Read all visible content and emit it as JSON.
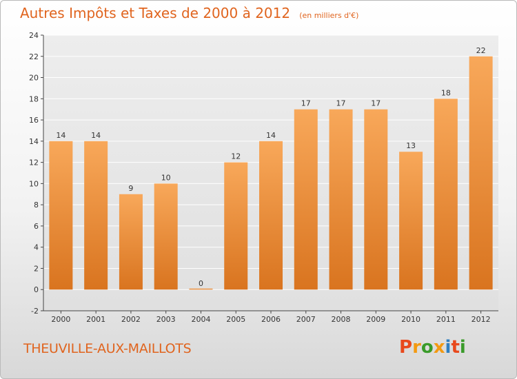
{
  "title": "Autres Impôts et Taxes de 2000 à 2012",
  "unit": "(en milliers d'€)",
  "location": "THEUVILLE-AUX-MAILLOTS",
  "logo": {
    "text": "Proxiti",
    "colors": [
      "#e8491d",
      "#f39a12",
      "#3a9b2a",
      "#f39a12",
      "#2f7fc1",
      "#e8491d",
      "#3a9b2a"
    ]
  },
  "chart_data": {
    "type": "bar",
    "categories": [
      "2000",
      "2001",
      "2002",
      "2003",
      "2004",
      "2005",
      "2006",
      "2007",
      "2008",
      "2009",
      "2010",
      "2011",
      "2012"
    ],
    "values": [
      14,
      14,
      9,
      10,
      0,
      12,
      14,
      17,
      17,
      17,
      13,
      18,
      22
    ],
    "title": "Autres Impôts et Taxes de 2000 à 2012",
    "xlabel": "",
    "ylabel": "",
    "ylim": [
      -2,
      24
    ],
    "yticks": [
      -2,
      0,
      2,
      4,
      6,
      8,
      10,
      12,
      14,
      16,
      18,
      20,
      22,
      24
    ],
    "grid": true,
    "colors": {
      "bar_light": "#f8a85a",
      "bar_dark": "#d9741f",
      "text": "#e0641e"
    }
  }
}
